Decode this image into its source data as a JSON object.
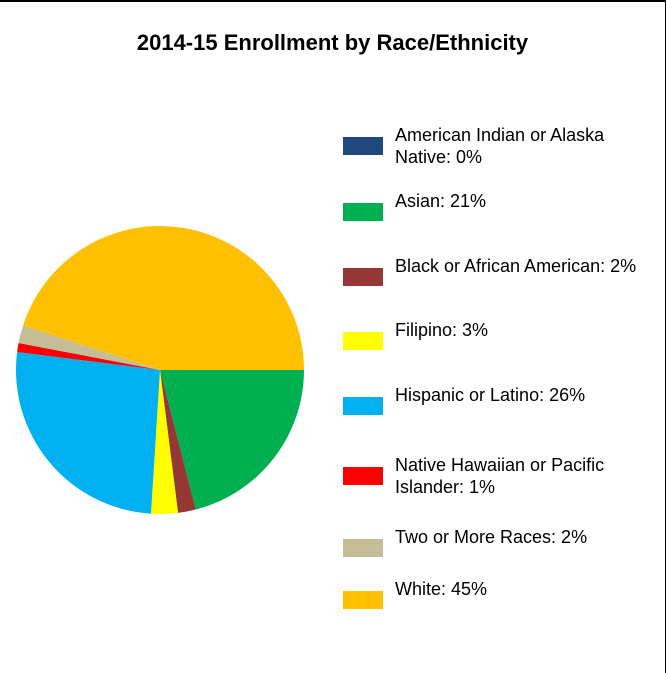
{
  "chart_data": {
    "type": "pie",
    "title": "2014-15 Enrollment by Race/Ethnicity",
    "categories": [
      "American Indian or Alaska Native: 0%",
      "Asian: 21%",
      "Black or African American: 2%",
      "Filipino: 3%",
      "Hispanic or Latino: 26%",
      "Native Hawaiian or Pacific Islander: 1%",
      "Two or More Races: 2%",
      "White: 45%"
    ],
    "values": [
      0,
      21,
      2,
      3,
      26,
      1,
      2,
      45
    ],
    "colors": [
      "#1f497d",
      "#00b050",
      "#953735",
      "#ffff00",
      "#00b0f0",
      "#ff0000",
      "#c4bd97",
      "#ffc000"
    ],
    "legend": "right"
  }
}
